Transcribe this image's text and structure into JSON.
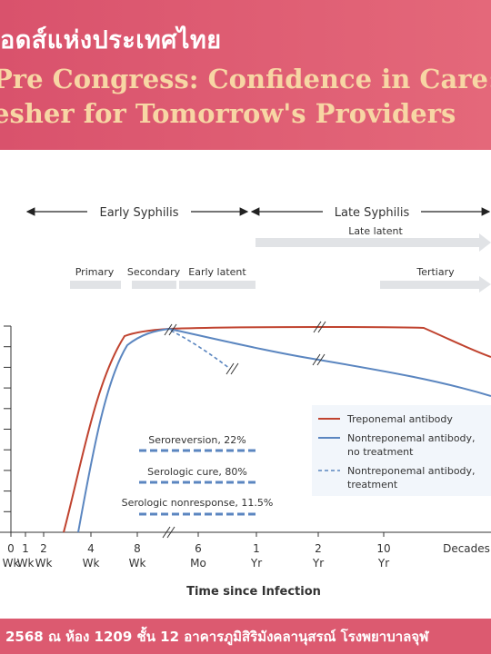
{
  "banner": {
    "title": "อดส์แห่งประเทศไทย",
    "line1": "Pre Congress: Confidence in Care:",
    "line2": "esher for Tomorrow's Providers"
  },
  "footer": {
    "text": "2568 ณ ห้อง 1209 ชั้น 12 อาคารภูมิสิริมังคลานุสรณ์ โรงพยาบาลจุฬ"
  },
  "chart_data": {
    "type": "line",
    "xlabel": "Time since Infection",
    "ticks": [
      {
        "top": "0",
        "bottom": "Wk"
      },
      {
        "top": "1",
        "bottom": "Wk"
      },
      {
        "top": "2",
        "bottom": "Wk"
      },
      {
        "top": "4",
        "bottom": "Wk"
      },
      {
        "top": "8",
        "bottom": "Wk"
      },
      {
        "top": "6",
        "bottom": "Mo"
      },
      {
        "top": "1",
        "bottom": "Yr"
      },
      {
        "top": "2",
        "bottom": "Yr"
      },
      {
        "top": "10",
        "bottom": "Yr"
      },
      {
        "top": "Decades",
        "bottom": ""
      }
    ],
    "stages": {
      "early": "Early Syphilis",
      "late": "Late Syphilis",
      "late_latent": "Late latent",
      "primary": "Primary",
      "secondary": "Secondary",
      "early_latent": "Early latent",
      "tertiary": "Tertiary"
    },
    "series": [
      {
        "name": "Treponemal antibody",
        "color": "#c0432f",
        "style": "solid"
      },
      {
        "name": "Nontreponemal antibody,",
        "name2": "no treatment",
        "color": "#5b86c0",
        "style": "solid"
      },
      {
        "name": "Nontreponemal antibody,",
        "name2": "treatment",
        "color": "#5b86c0",
        "style": "dashed"
      }
    ],
    "annotations": [
      {
        "id": "seroreversion",
        "text": "Seroreversion, 22%"
      },
      {
        "id": "cure",
        "text": "Serologic cure, 80%"
      },
      {
        "id": "nonresponse",
        "text": "Serologic nonresponse, 11.5%"
      }
    ],
    "grid": false,
    "legend_position": "bottom-right"
  }
}
